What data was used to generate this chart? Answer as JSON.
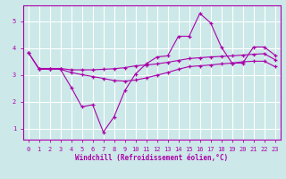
{
  "xlabel": "Windchill (Refroidissement éolien,°C)",
  "bg_color": "#cce8e8",
  "grid_color": "#ffffff",
  "line_color": "#aa00aa",
  "xlim": [
    -0.5,
    23.5
  ],
  "ylim": [
    0.6,
    5.6
  ],
  "xticks": [
    0,
    1,
    2,
    3,
    4,
    5,
    6,
    7,
    8,
    9,
    10,
    11,
    12,
    13,
    14,
    15,
    16,
    17,
    18,
    19,
    20,
    21,
    22,
    23
  ],
  "yticks": [
    1,
    2,
    3,
    4,
    5
  ],
  "line1_x": [
    0,
    1,
    2,
    3,
    4,
    5,
    6,
    7,
    8,
    9,
    10,
    11,
    12,
    13,
    14,
    15,
    16,
    17,
    18,
    19,
    20,
    21,
    22,
    23
  ],
  "line1_y": [
    3.85,
    3.25,
    3.25,
    3.25,
    3.2,
    3.2,
    3.2,
    3.22,
    3.24,
    3.28,
    3.35,
    3.38,
    3.42,
    3.48,
    3.55,
    3.62,
    3.65,
    3.68,
    3.7,
    3.72,
    3.75,
    3.78,
    3.8,
    3.58
  ],
  "line2_x": [
    0,
    1,
    2,
    3,
    4,
    5,
    6,
    7,
    8,
    9,
    10,
    11,
    12,
    13,
    14,
    15,
    16,
    17,
    18,
    19,
    20,
    21,
    22,
    23
  ],
  "line2_y": [
    3.85,
    3.22,
    3.22,
    3.22,
    3.1,
    3.02,
    2.95,
    2.88,
    2.8,
    2.78,
    2.82,
    2.9,
    3.0,
    3.1,
    3.22,
    3.32,
    3.35,
    3.38,
    3.42,
    3.45,
    3.5,
    3.52,
    3.52,
    3.32
  ],
  "line3_x": [
    1,
    2,
    3,
    4,
    5,
    6,
    7,
    8,
    9,
    10,
    11,
    12,
    13,
    14,
    15,
    16,
    17,
    18,
    19,
    20,
    21,
    22,
    23
  ],
  "line3_y": [
    3.22,
    3.22,
    3.22,
    2.55,
    1.82,
    1.9,
    0.88,
    1.45,
    2.42,
    3.05,
    3.42,
    3.68,
    3.72,
    4.45,
    4.45,
    5.3,
    4.95,
    4.05,
    3.45,
    3.45,
    4.05,
    4.05,
    3.75
  ]
}
